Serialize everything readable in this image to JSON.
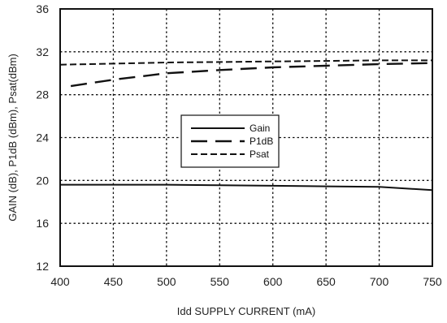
{
  "chart_data": {
    "type": "line",
    "xlabel": "Idd SUPPLY CURRENT (mA)",
    "ylabel": "GAIN (dB), P1dB (dBm), Psat(dBm)",
    "xlim": [
      400,
      750
    ],
    "ylim": [
      12,
      36
    ],
    "xticks": [
      400,
      450,
      500,
      550,
      600,
      650,
      700,
      750
    ],
    "yticks": [
      12,
      16,
      20,
      24,
      28,
      32,
      36
    ],
    "x_tick_labels": [
      "400",
      "450",
      "500",
      "550",
      "600",
      "650",
      "700",
      "750"
    ],
    "y_tick_labels": [
      "12",
      "16",
      "20",
      "24",
      "28",
      "32",
      "36"
    ],
    "grid": true,
    "legend_position": "center",
    "series": [
      {
        "name": "Gain",
        "style": "solid",
        "color": "#111111",
        "x": [
          400,
          450,
          500,
          550,
          600,
          650,
          700,
          750
        ],
        "y": [
          19.6,
          19.6,
          19.6,
          19.55,
          19.5,
          19.45,
          19.4,
          19.1
        ]
      },
      {
        "name": "P1dB",
        "style": "long-dash",
        "color": "#111111",
        "x": [
          410,
          450,
          500,
          550,
          600,
          650,
          700,
          750
        ],
        "y": [
          28.8,
          29.4,
          30.0,
          30.3,
          30.55,
          30.7,
          30.85,
          30.95
        ]
      },
      {
        "name": "Psat",
        "style": "short-dash",
        "color": "#111111",
        "x": [
          400,
          450,
          500,
          550,
          600,
          650,
          700,
          750
        ],
        "y": [
          30.8,
          30.9,
          31.0,
          31.05,
          31.1,
          31.15,
          31.2,
          31.2
        ]
      }
    ]
  }
}
